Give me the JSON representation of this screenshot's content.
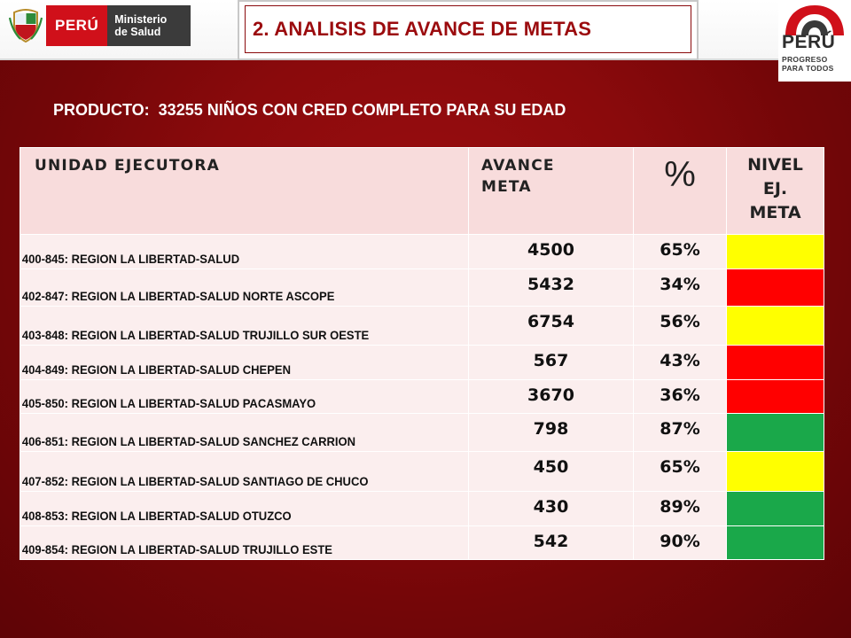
{
  "header": {
    "minsa_country": "PERÚ",
    "minsa_ministry_line1": "Ministerio",
    "minsa_ministry_line2": "de Salud",
    "title": "2. ANALISIS DE AVANCE DE METAS",
    "logo_country": "PERÚ",
    "logo_tagline_line1": "PROGRESO",
    "logo_tagline_line2": "PARA TODOS"
  },
  "producto": {
    "label": "PRODUCTO:",
    "text": "33255 NIÑOS CON CRED COMPLETO PARA SU EDAD"
  },
  "table": {
    "headers": {
      "unit": "UNIDAD EJECUTORA",
      "avance_line1": "AVANCE",
      "avance_line2": "META",
      "pct": "%",
      "nivel_line1": "NIVEL",
      "nivel_line2": "EJ.",
      "nivel_line3": "META"
    },
    "rows": [
      {
        "unit": "400-845: REGION LA LIBERTAD-SALUD",
        "avance": "4500",
        "pct": "65%",
        "level": "yellow"
      },
      {
        "unit": "402-847: REGION LA LIBERTAD-SALUD NORTE ASCOPE",
        "avance": "5432",
        "pct": "34%",
        "level": "red"
      },
      {
        "unit": "403-848: REGION LA LIBERTAD-SALUD TRUJILLO SUR OESTE",
        "avance": "6754",
        "pct": "56%",
        "level": "yellow"
      },
      {
        "unit": "404-849: REGION LA LIBERTAD-SALUD CHEPEN",
        "avance": "567",
        "pct": "43%",
        "level": "red"
      },
      {
        "unit": "405-850: REGION LA LIBERTAD-SALUD PACASMAYO",
        "avance": "3670",
        "pct": "36%",
        "level": "red"
      },
      {
        "unit": "406-851: REGION LA LIBERTAD-SALUD SANCHEZ CARRION",
        "avance": "798",
        "pct": "87%",
        "level": "green"
      },
      {
        "unit": "407-852: REGION LA LIBERTAD-SALUD SANTIAGO DE CHUCO",
        "avance": "450",
        "pct": "65%",
        "level": "yellow"
      },
      {
        "unit": "408-853: REGION LA LIBERTAD-SALUD OTUZCO",
        "avance": "430",
        "pct": "89%",
        "level": "green"
      },
      {
        "unit": "409-854: REGION LA LIBERTAD-SALUD TRUJILLO ESTE",
        "avance": "542",
        "pct": "90%",
        "level": "green"
      }
    ]
  },
  "colors": {
    "red": "#ff0000",
    "yellow": "#ffff00",
    "green": "#1aa84a",
    "background": "#8a0a0c",
    "header_fill": "#f8dcdc",
    "row_fill": "#fbeeee"
  }
}
